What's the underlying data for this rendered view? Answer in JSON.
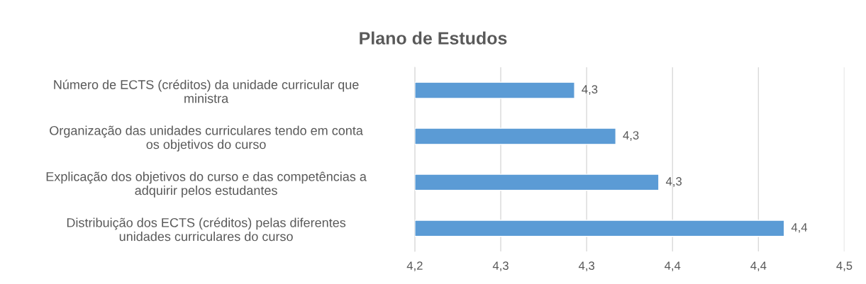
{
  "chart_data": {
    "type": "bar",
    "orientation": "horizontal",
    "title": "Plano de Estudos",
    "categories": [
      "Número de ECTS (créditos) da unidade curricular que\nministra",
      "Organização das unidades curriculares tendo em conta\nos objetivos do curso",
      "Explicação dos objetivos do curso e das competências a\nadquirir pelos estudantes",
      "Distribuição dos ECTS (créditos) pelas diferentes\nunidades curriculares do curso"
    ],
    "values": [
      4.293,
      4.317,
      4.342,
      4.415
    ],
    "value_labels": [
      "4,3",
      "4,3",
      "4,3",
      "4,4"
    ],
    "color": "#5b9bd5",
    "xlim": [
      4.2,
      4.45
    ],
    "xticks": [
      {
        "value": 4.2,
        "label": "4,2"
      },
      {
        "value": 4.25,
        "label": "4,3"
      },
      {
        "value": 4.3,
        "label": "4,3"
      },
      {
        "value": 4.35,
        "label": "4,4"
      },
      {
        "value": 4.4,
        "label": "4,4"
      },
      {
        "value": 4.45,
        "label": "4,5"
      }
    ],
    "grid": "x",
    "legend": false
  }
}
